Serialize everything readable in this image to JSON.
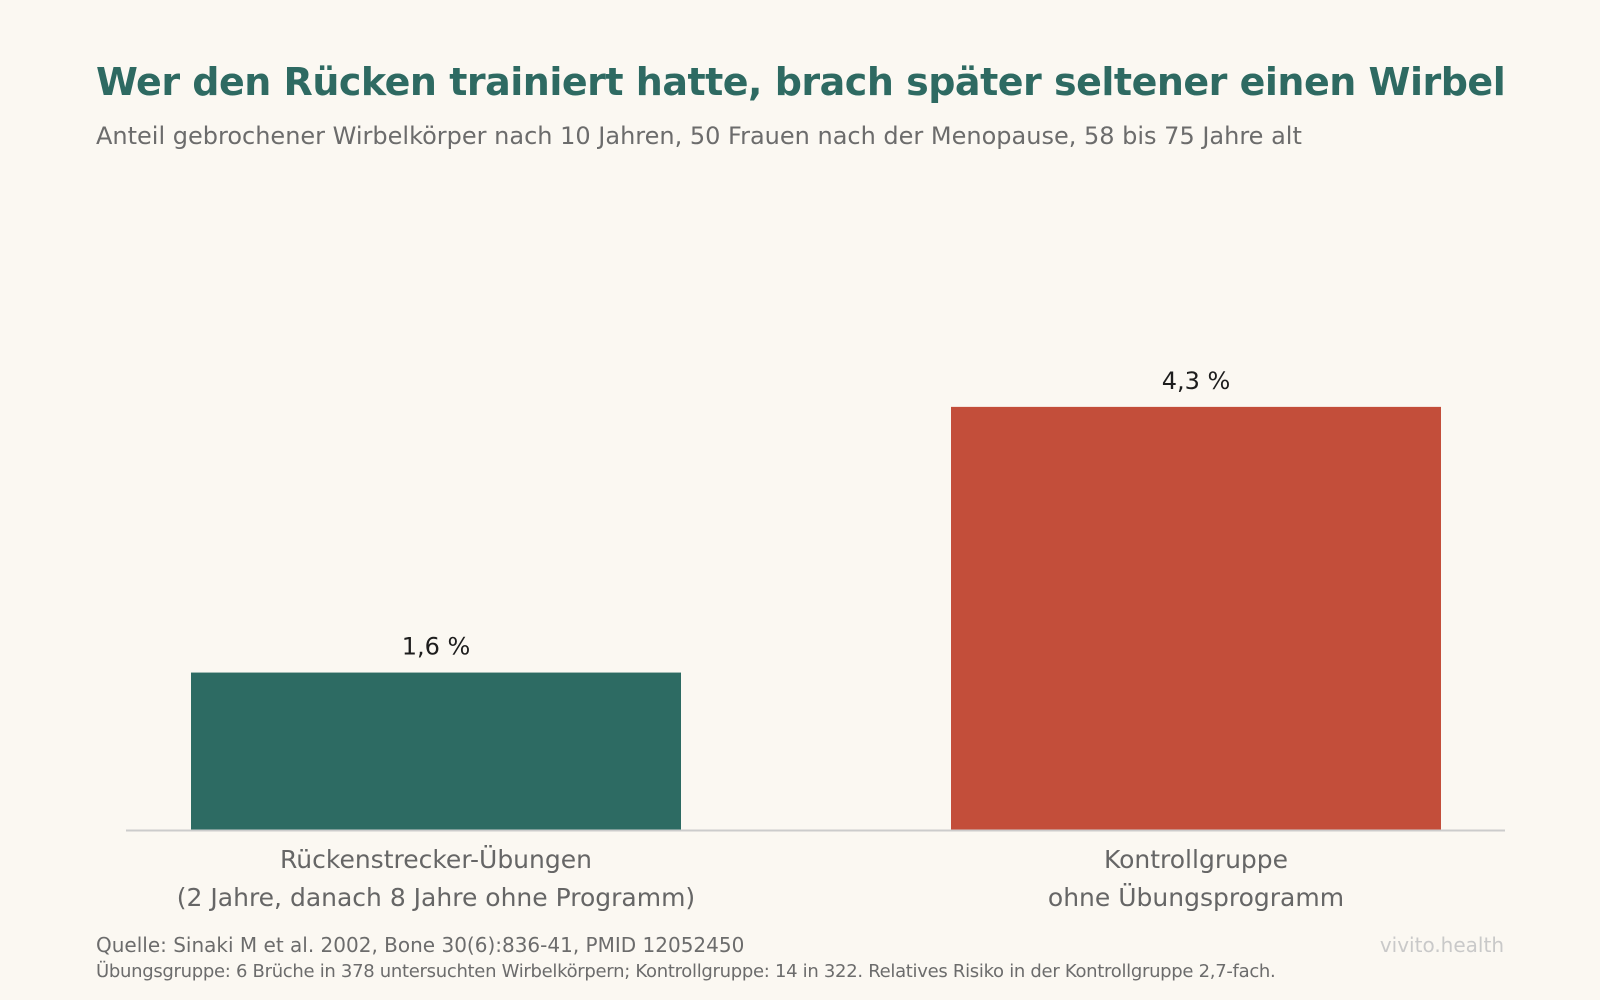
{
  "header": {
    "title": "Wer den Rücken trainiert hatte, brach später seltener einen Wirbel",
    "subtitle": "Anteil gebrochener Wirbelkörper nach 10 Jahren, 50 Frauen nach der Menopause, 58 bis 75 Jahre alt"
  },
  "chart_data": {
    "type": "bar",
    "title": "Wer den Rücken trainiert hatte, brach später seltener einen Wirbel",
    "subtitle": "Anteil gebrochener Wirbelkörper nach 10 Jahren, 50 Frauen nach der Menopause, 58 bis 75 Jahre alt",
    "categories": [
      [
        "Rückenstrecker-Übungen",
        "(2 Jahre, danach 8 Jahre ohne Programm)"
      ],
      [
        "Kontrollgruppe",
        "ohne Übungsprogramm"
      ]
    ],
    "values": [
      1.6,
      4.3
    ],
    "value_labels": [
      "1,6 %",
      "4,3 %"
    ],
    "unit": "%",
    "ylim": [
      0,
      5.0
    ],
    "grid": false,
    "legend": "none"
  },
  "footer": {
    "source": "Quelle: Sinaki M et al. 2002, Bone 30(6):836-41, PMID 12052450",
    "note": "Übungsgruppe: 6 Brüche in 378 untersuchten Wirbelkörpern; Kontrollgruppe: 14 in 322. Relatives Risiko in der Kontrollgruppe 2,7-fach.",
    "brand": "vivito.health"
  },
  "colors": {
    "title": "#2e6a62",
    "subtitle": "#6c6c6c",
    "bar_exercise": "#2d6b63",
    "bar_control": "#c34e3a",
    "axis": "#cccccc",
    "category_text": "#666666",
    "value_text": "#1d1d1d",
    "footer_text": "#6c6c6c",
    "brand_text": "#c9c9c9"
  }
}
